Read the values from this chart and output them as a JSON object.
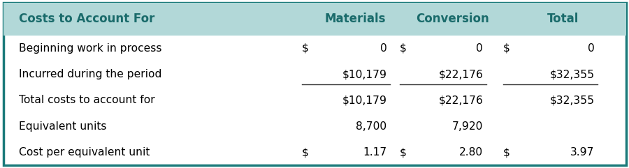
{
  "headers": [
    "Costs to Account For",
    "Materials",
    "Conversion",
    "Total"
  ],
  "header_bg": "#b2d8d8",
  "border_color": "#1a7a7a",
  "header_text_color": "#1a6b6b",
  "rows": [
    {
      "label": "Beginning work in process",
      "mat_dollar": "$",
      "mat_val": "0",
      "conv_dollar": "$",
      "conv_val": "0",
      "tot_dollar": "$",
      "tot_val": "0",
      "underline": false
    },
    {
      "label": "Incurred during the period",
      "mat_dollar": "",
      "mat_val": "$10,179",
      "conv_dollar": "",
      "conv_val": "$22,176",
      "tot_dollar": "",
      "tot_val": "$32,355",
      "underline": true
    },
    {
      "label": "Total costs to account for",
      "mat_dollar": "",
      "mat_val": "$10,179",
      "conv_dollar": "",
      "conv_val": "$22,176",
      "tot_dollar": "",
      "tot_val": "$32,355",
      "underline": false
    },
    {
      "label": "Equivalent units",
      "mat_dollar": "",
      "mat_val": "8,700",
      "conv_dollar": "",
      "conv_val": "7,920",
      "tot_dollar": "",
      "tot_val": "",
      "underline": false
    },
    {
      "label": "Cost per equivalent unit",
      "mat_dollar": "$",
      "mat_val": "1.17",
      "conv_dollar": "$",
      "conv_val": "2.80",
      "tot_dollar": "$",
      "tot_val": "3.97",
      "underline": false
    }
  ],
  "figsize": [
    9.0,
    2.41
  ],
  "dpi": 100,
  "bg_color": "#ffffff",
  "text_color": "#000000",
  "font_size": 11.2,
  "header_font_size": 12.0
}
